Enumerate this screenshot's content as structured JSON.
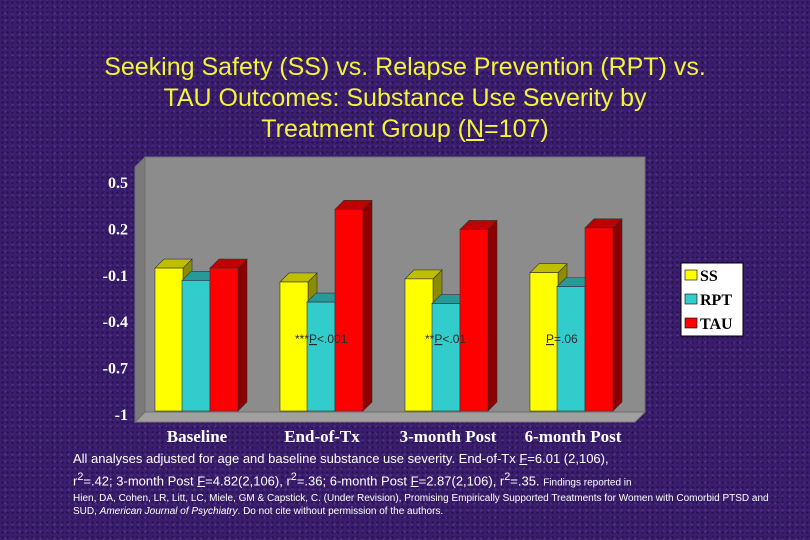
{
  "title": {
    "line1": "Seeking Safety (SS) vs. Relapse Prevention (RPT) vs.",
    "line2": "TAU Outcomes: Substance Use Severity by",
    "line3_pre": "Treatment Group (",
    "line3_n": "N",
    "line3_post": "=107)"
  },
  "colors": {
    "SS": "#ffff00",
    "RPT": "#33cccc",
    "TAU": "#ff0000"
  },
  "chart_data": {
    "type": "bar",
    "categories": [
      "Baseline",
      "End-of-Tx",
      "3-month Post",
      "6-month Post"
    ],
    "series": [
      {
        "name": "SS",
        "values": [
          -0.05,
          -0.14,
          -0.12,
          -0.08
        ]
      },
      {
        "name": "RPT",
        "values": [
          -0.13,
          -0.27,
          -0.28,
          -0.17
        ]
      },
      {
        "name": "TAU",
        "values": [
          -0.05,
          0.33,
          0.2,
          0.21
        ]
      }
    ],
    "yticks": [
      "0.5",
      "0.2",
      "-0.1",
      "-0.4",
      "-0.7",
      "-1"
    ],
    "ylim": [
      -1,
      0.5
    ],
    "annotations": [
      {
        "pre": "***",
        "p": "P",
        "post": "<.001"
      },
      {
        "pre": "**",
        "p": "P",
        "post": "<.01"
      },
      {
        "pre": "",
        "p": "P",
        "post": "=.06"
      }
    ],
    "legend": [
      "SS",
      "RPT",
      "TAU"
    ],
    "legend_position": "right"
  },
  "notes": {
    "a1": "All analyses adjusted for age and baseline substance use severity. End-of-Tx ",
    "f1": "F",
    "a2": "=6.01 (2,106),",
    "b1": "r",
    "b1sup": "2",
    "b2": "=.42; 3-month Post ",
    "f2": "F",
    "b3": "=4.82(2,106), r",
    "b3sup": "2",
    "b4": "=.36; 6-month Post ",
    "f3": "F",
    "b5": "=2.87(2,106), r",
    "b5sup": "2",
    "b6": "=.35.",
    "small": "Findings reported in",
    "ref1": "Hien, DA, Cohen, LR, Litt, LC, Miele, GM & Capstick, C. (Under Revision), Promising Empirically Supported Treatments for Women with Comorbid PTSD and SUD, ",
    "ref_journal": "American Journal of Psychiatry",
    "ref2": ". Do not cite without permission of the authors."
  }
}
